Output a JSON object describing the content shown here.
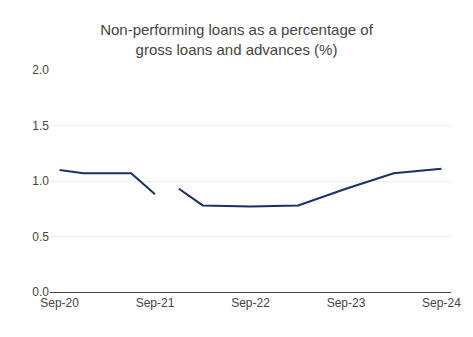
{
  "chart_data": {
    "type": "line",
    "title": "Non-performing loans as a percentage of\ngross loans and advances (%)",
    "series": [
      {
        "color": "#1b2d6b",
        "x": [
          0,
          0.25,
          0.75,
          1.0
        ],
        "values": [
          1.1,
          1.07,
          1.07,
          0.88
        ]
      },
      {
        "color": "#1b2d6b",
        "x": [
          1.25,
          1.5,
          2.0,
          2.5,
          3.0,
          3.5,
          4.0
        ],
        "values": [
          0.93,
          0.78,
          0.77,
          0.78,
          0.93,
          1.07,
          1.11
        ]
      }
    ],
    "xlim": [
      -0.1,
      4.1
    ],
    "xticks": [
      {
        "value": 0,
        "label": "Sep-20"
      },
      {
        "value": 1,
        "label": "Sep-21"
      },
      {
        "value": 2,
        "label": "Sep-22"
      },
      {
        "value": 3,
        "label": "Sep-23"
      },
      {
        "value": 4,
        "label": "Sep-24"
      }
    ],
    "ylim": [
      0.0,
      2.0
    ],
    "yticks": [
      {
        "value": 0.0,
        "label": "0.0"
      },
      0.5,
      {
        "value": 1.0,
        "label": "1.0"
      },
      1.5,
      {
        "value": 2.0,
        "label": "2.0"
      }
    ],
    "grid": "y"
  }
}
